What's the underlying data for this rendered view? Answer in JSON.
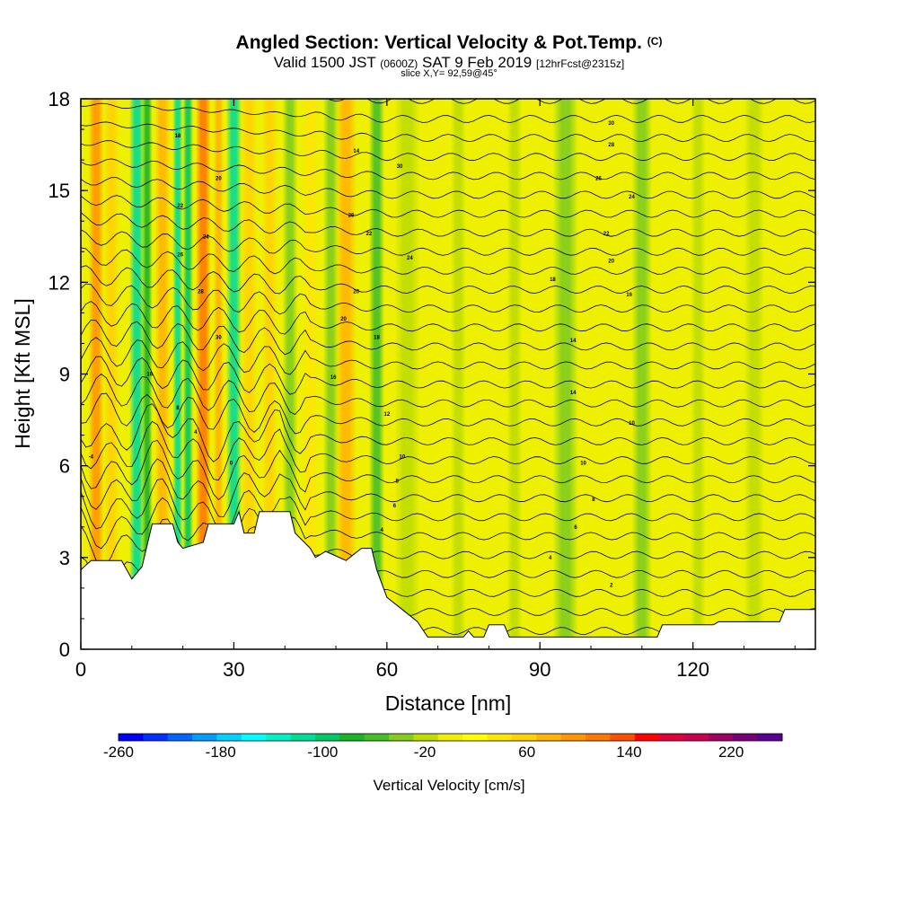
{
  "title": {
    "main": "Angled Section: Vertical Velocity & Pot.Temp.",
    "units": "(C)",
    "valid_prefix": "Valid 1500 JST",
    "valid_utc": "(0600Z)",
    "valid_date": "SAT 9 Feb 2019",
    "fcst": "[12hrFcst@2315z]",
    "slice": "slice X,Y= 92,59@45°"
  },
  "chart_data": {
    "type": "heatmap",
    "xlabel": "Distance [nm]",
    "ylabel": "Height [Kft MSL]",
    "xlim": [
      0,
      144
    ],
    "ylim": [
      0,
      18
    ],
    "xticks": [
      "0",
      "30",
      "60",
      "90",
      "120"
    ],
    "xtick_values": [
      0,
      30,
      60,
      90,
      120
    ],
    "yticks": [
      "0",
      "3",
      "6",
      "9",
      "12",
      "15",
      "18"
    ],
    "ytick_values": [
      0,
      3,
      6,
      9,
      12,
      15,
      18
    ],
    "colorbar": {
      "title": "Vertical Velocity [cm/s]",
      "min": -260,
      "max": 260,
      "step": 20,
      "labels": [
        "-260",
        "-180",
        "-100",
        "-20",
        "60",
        "140",
        "220"
      ],
      "label_values": [
        -260,
        -180,
        -100,
        -20,
        60,
        140,
        220
      ],
      "colors": [
        "#0000ff",
        "#0030ff",
        "#0066ff",
        "#009cff",
        "#00d2ff",
        "#00ffff",
        "#00f0c8",
        "#00dc96",
        "#00c864",
        "#19b428",
        "#46be28",
        "#82cd1e",
        "#bedc00",
        "#f0f000",
        "#ffff00",
        "#ffe600",
        "#ffd200",
        "#ffb400",
        "#ff9600",
        "#ff7800",
        "#ff5000",
        "#ff0000",
        "#e1003c",
        "#c80050",
        "#a00064",
        "#780078",
        "#5a0096"
      ]
    },
    "terrain_kft": [
      [
        0,
        2.6
      ],
      [
        2,
        2.9
      ],
      [
        8,
        2.9
      ],
      [
        9,
        2.6
      ],
      [
        10,
        2.3
      ],
      [
        12,
        2.7
      ],
      [
        13,
        3.4
      ],
      [
        14,
        4.1
      ],
      [
        18,
        4.1
      ],
      [
        19,
        3.5
      ],
      [
        20,
        3.3
      ],
      [
        24,
        3.5
      ],
      [
        25,
        4.1
      ],
      [
        30,
        4.1
      ],
      [
        31,
        4.5
      ],
      [
        32,
        3.8
      ],
      [
        34,
        3.8
      ],
      [
        35,
        4.5
      ],
      [
        41,
        4.5
      ],
      [
        42,
        3.8
      ],
      [
        45,
        3.3
      ],
      [
        46,
        3.0
      ],
      [
        48,
        3.2
      ],
      [
        52,
        2.9
      ],
      [
        55,
        3.3
      ],
      [
        57,
        3.3
      ],
      [
        58,
        2.6
      ],
      [
        60,
        1.7
      ],
      [
        63,
        1.3
      ],
      [
        66,
        0.9
      ],
      [
        68,
        0.4
      ],
      [
        75,
        0.4
      ],
      [
        76,
        0.6
      ],
      [
        77,
        0.4
      ],
      [
        79,
        0.4
      ],
      [
        80,
        0.8
      ],
      [
        83,
        0.8
      ],
      [
        84,
        0.4
      ],
      [
        113,
        0.4
      ],
      [
        114,
        0.8
      ],
      [
        124,
        0.8
      ],
      [
        125,
        0.9
      ],
      [
        137,
        0.9
      ],
      [
        138,
        1.3
      ],
      [
        144,
        1.3
      ]
    ],
    "velocity_bands": [
      {
        "x": 3,
        "width": 3,
        "value": 100
      },
      {
        "x": 6,
        "width": 3,
        "value": 60
      },
      {
        "x": 11,
        "width": 3,
        "value": -120
      },
      {
        "x": 13,
        "width": 2,
        "value": -80
      },
      {
        "x": 16,
        "width": 3,
        "value": 80
      },
      {
        "x": 19,
        "width": 2,
        "value": -120
      },
      {
        "x": 21,
        "width": 2,
        "value": -100
      },
      {
        "x": 24,
        "width": 3,
        "value": 120
      },
      {
        "x": 27,
        "width": 2,
        "value": 80
      },
      {
        "x": 30,
        "width": 3,
        "value": -120
      },
      {
        "x": 33,
        "width": 3,
        "value": 60
      },
      {
        "x": 37,
        "width": 3,
        "value": 60
      },
      {
        "x": 41,
        "width": 3,
        "value": -40
      },
      {
        "x": 45,
        "width": 3,
        "value": 40
      },
      {
        "x": 49,
        "width": 3,
        "value": -30
      },
      {
        "x": 52,
        "width": 4,
        "value": 80
      },
      {
        "x": 58,
        "width": 3,
        "value": -50
      },
      {
        "x": 64,
        "width": 5,
        "value": -20
      },
      {
        "x": 74,
        "width": 3,
        "value": -20
      },
      {
        "x": 85,
        "width": 3,
        "value": -20
      },
      {
        "x": 95,
        "width": 5,
        "value": -30
      },
      {
        "x": 110,
        "width": 4,
        "value": -30
      },
      {
        "x": 121,
        "width": 3,
        "value": -20
      },
      {
        "x": 132,
        "width": 4,
        "value": -20
      }
    ],
    "theta_labels": [
      {
        "x": 2,
        "y": 6.3,
        "text": "-4"
      },
      {
        "x": 19,
        "y": 16.8,
        "text": "18"
      },
      {
        "x": 27,
        "y": 15.4,
        "text": "20"
      },
      {
        "x": 19.5,
        "y": 14.5,
        "text": "22"
      },
      {
        "x": 24.5,
        "y": 13.5,
        "text": "24"
      },
      {
        "x": 19.5,
        "y": 12.9,
        "text": "26"
      },
      {
        "x": 23.5,
        "y": 11.7,
        "text": "28"
      },
      {
        "x": 27,
        "y": 10.2,
        "text": "30"
      },
      {
        "x": 13.5,
        "y": 9.0,
        "text": "16"
      },
      {
        "x": 19,
        "y": 7.9,
        "text": "8"
      },
      {
        "x": 22.5,
        "y": 7.1,
        "text": "4"
      },
      {
        "x": 29.5,
        "y": 6.1,
        "text": "0"
      },
      {
        "x": 54,
        "y": 16.3,
        "text": "14"
      },
      {
        "x": 62.5,
        "y": 15.8,
        "text": "30"
      },
      {
        "x": 53,
        "y": 14.2,
        "text": "26"
      },
      {
        "x": 56.5,
        "y": 13.6,
        "text": "22"
      },
      {
        "x": 64.5,
        "y": 12.8,
        "text": "24"
      },
      {
        "x": 54,
        "y": 11.7,
        "text": "20"
      },
      {
        "x": 51.5,
        "y": 10.8,
        "text": "20"
      },
      {
        "x": 58,
        "y": 10.2,
        "text": "18"
      },
      {
        "x": 49.5,
        "y": 8.9,
        "text": "16"
      },
      {
        "x": 60,
        "y": 7.7,
        "text": "12"
      },
      {
        "x": 63,
        "y": 6.3,
        "text": "10"
      },
      {
        "x": 62,
        "y": 5.5,
        "text": "8"
      },
      {
        "x": 61.5,
        "y": 4.7,
        "text": "6"
      },
      {
        "x": 59,
        "y": 3.9,
        "text": "4"
      },
      {
        "x": 104,
        "y": 17.2,
        "text": "30"
      },
      {
        "x": 104,
        "y": 16.5,
        "text": "28"
      },
      {
        "x": 101.5,
        "y": 15.4,
        "text": "26"
      },
      {
        "x": 108,
        "y": 14.8,
        "text": "24"
      },
      {
        "x": 103,
        "y": 13.6,
        "text": "22"
      },
      {
        "x": 104,
        "y": 12.7,
        "text": "20"
      },
      {
        "x": 92.5,
        "y": 12.1,
        "text": "18"
      },
      {
        "x": 107.5,
        "y": 11.6,
        "text": "16"
      },
      {
        "x": 96.5,
        "y": 10.1,
        "text": "14"
      },
      {
        "x": 96.5,
        "y": 8.4,
        "text": "14"
      },
      {
        "x": 108,
        "y": 7.4,
        "text": "10"
      },
      {
        "x": 98.5,
        "y": 6.1,
        "text": "10"
      },
      {
        "x": 100.5,
        "y": 4.9,
        "text": "8"
      },
      {
        "x": 97,
        "y": 4.0,
        "text": "6"
      },
      {
        "x": 92,
        "y": 3.0,
        "text": "4"
      },
      {
        "x": 104,
        "y": 2.1,
        "text": "2"
      }
    ]
  }
}
